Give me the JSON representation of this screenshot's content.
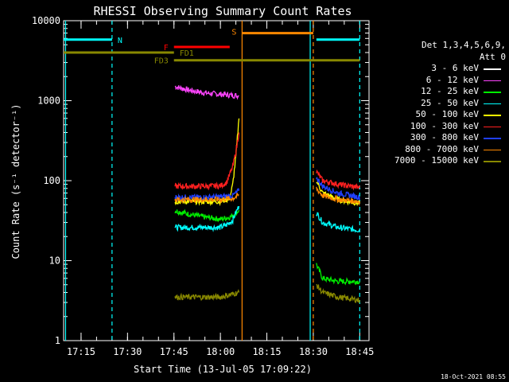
{
  "footer_date": "18-Oct-2021 08:55",
  "legend": {
    "header_line1": "Det 1,3,4,5,6,9,",
    "header_line2": "Att 0"
  },
  "chart_data": {
    "type": "line",
    "title": "RHESSI Observing Summary Count Rates",
    "xlabel": "Start Time (13-Jul-05 17:09:22)",
    "ylabel": "Count Rate (s⁻¹ detector⁻¹)",
    "y_scale": "log",
    "ylim": [
      1,
      10000
    ],
    "xlim": [
      "17:09:22",
      "18:48"
    ],
    "x_ticks": [
      "17:15",
      "17:30",
      "17:45",
      "18:00",
      "18:15",
      "18:30",
      "18:45"
    ],
    "y_ticks": [
      "1",
      "10",
      "100",
      "1000",
      "10000"
    ],
    "grid": false,
    "legend_position": "right",
    "series": [
      {
        "name": "3 - 6 keV",
        "color": "#ffffff",
        "points": []
      },
      {
        "name": "6 - 12 keV",
        "color": "#ff44ff",
        "points": [
          [
            "17:45:20",
            1500
          ],
          [
            "17:50",
            1350
          ],
          [
            "17:55",
            1250
          ],
          [
            "18:00",
            1200
          ],
          [
            "18:06",
            1150
          ]
        ]
      },
      {
        "name": "12 - 25 keV",
        "color": "#00ee00",
        "points": [
          [
            "17:45:20",
            42
          ],
          [
            "17:50",
            38
          ],
          [
            "17:55",
            35
          ],
          [
            "18:00",
            33
          ],
          [
            "18:03",
            35
          ],
          [
            "18:05",
            39
          ],
          [
            "18:06",
            43
          ]
        ],
        "points2": [
          [
            "18:31",
            9
          ],
          [
            "18:33",
            6
          ],
          [
            "18:38",
            5.5
          ],
          [
            "18:45",
            5.5
          ]
        ]
      },
      {
        "name": "25 - 50 keV",
        "color": "#00ffff",
        "points": [
          [
            "17:45:20",
            26
          ],
          [
            "17:50",
            26
          ],
          [
            "17:55",
            26
          ],
          [
            "18:00",
            26
          ],
          [
            "18:02",
            28
          ],
          [
            "18:04",
            32
          ],
          [
            "18:05",
            40
          ],
          [
            "18:06",
            48
          ]
        ],
        "points2": [
          [
            "18:31",
            40
          ],
          [
            "18:33",
            30
          ],
          [
            "18:38",
            26
          ],
          [
            "18:45",
            24
          ]
        ]
      },
      {
        "name": "50 - 100 keV",
        "color": "#ffff00",
        "points": [
          [
            "17:45:20",
            55
          ],
          [
            "17:55",
            55
          ],
          [
            "18:00",
            55
          ],
          [
            "18:03",
            60
          ],
          [
            "18:04",
            90
          ],
          [
            "18:05",
            200
          ],
          [
            "18:06",
            600
          ]
        ],
        "points2": [
          [
            "18:31",
            100
          ],
          [
            "18:33",
            70
          ],
          [
            "18:38",
            58
          ],
          [
            "18:45",
            52
          ]
        ]
      },
      {
        "name": "100 - 300 keV",
        "color": "#ff2020",
        "points": [
          [
            "17:45:20",
            85
          ],
          [
            "17:55",
            85
          ],
          [
            "18:00",
            86
          ],
          [
            "18:02",
            95
          ],
          [
            "18:04",
            150
          ],
          [
            "18:05",
            230
          ],
          [
            "18:06",
            400
          ]
        ],
        "points2": [
          [
            "18:31",
            130
          ],
          [
            "18:33",
            100
          ],
          [
            "18:38",
            90
          ],
          [
            "18:45",
            82
          ]
        ]
      },
      {
        "name": "300 - 800 keV",
        "color": "#2040ff",
        "points": [
          [
            "17:45:20",
            62
          ],
          [
            "17:55",
            62
          ],
          [
            "18:00",
            63
          ],
          [
            "18:04",
            65
          ],
          [
            "18:06",
            75
          ]
        ],
        "points2": [
          [
            "18:31",
            110
          ],
          [
            "18:33",
            85
          ],
          [
            "18:38",
            70
          ],
          [
            "18:45",
            62
          ]
        ]
      },
      {
        "name": "800 - 7000 keV",
        "color": "#ff8800",
        "points": [
          [
            "17:45:20",
            58
          ],
          [
            "17:55",
            58
          ],
          [
            "18:00",
            58
          ],
          [
            "18:04",
            60
          ],
          [
            "18:06",
            66
          ]
        ],
        "points2": [
          [
            "18:31",
            80
          ],
          [
            "18:33",
            65
          ],
          [
            "18:38",
            58
          ],
          [
            "18:45",
            55
          ]
        ]
      },
      {
        "name": "7000 - 15000 keV",
        "color": "#888800",
        "points": [
          [
            "17:45:20",
            3.5
          ],
          [
            "17:55",
            3.5
          ],
          [
            "18:00",
            3.5
          ],
          [
            "18:06",
            4
          ]
        ],
        "points2": [
          [
            "18:31",
            5
          ],
          [
            "18:33",
            4
          ],
          [
            "18:38",
            3.5
          ],
          [
            "18:45",
            3.2
          ]
        ]
      }
    ],
    "flag_bars": [
      {
        "label": "N",
        "color": "#00ffff",
        "y": 5800,
        "segments": [
          [
            "17:09:22",
            "17:25"
          ],
          [
            "18:31",
            "18:45"
          ]
        ]
      },
      {
        "label": "F",
        "color": "#ff0000",
        "y": 4700,
        "segments": [
          [
            "17:45",
            "18:03"
          ]
        ]
      },
      {
        "label": "FD1",
        "color": "#888800",
        "y": 4000,
        "segments": [
          [
            "17:09:22",
            "17:45"
          ]
        ]
      },
      {
        "label": "FD3",
        "color": "#888800",
        "y": 3200,
        "segments": [
          [
            "17:45",
            "18:45"
          ]
        ]
      },
      {
        "label": "S",
        "color": "#ff8800",
        "y": 7000,
        "segments": [
          [
            "18:07",
            "18:30"
          ]
        ]
      }
    ],
    "vertical_markers": [
      {
        "x": "17:10",
        "color": "#00ffff",
        "style": "solid"
      },
      {
        "x": "17:25",
        "color": "#00ffff",
        "style": "dashed"
      },
      {
        "x": "18:07",
        "color": "#ff8800",
        "style": "solid"
      },
      {
        "x": "18:29",
        "color": "#00ffff",
        "style": "solid"
      },
      {
        "x": "18:30",
        "color": "#ff8800",
        "style": "dashed"
      },
      {
        "x": "18:45",
        "color": "#00ffff",
        "style": "dashed"
      }
    ]
  }
}
